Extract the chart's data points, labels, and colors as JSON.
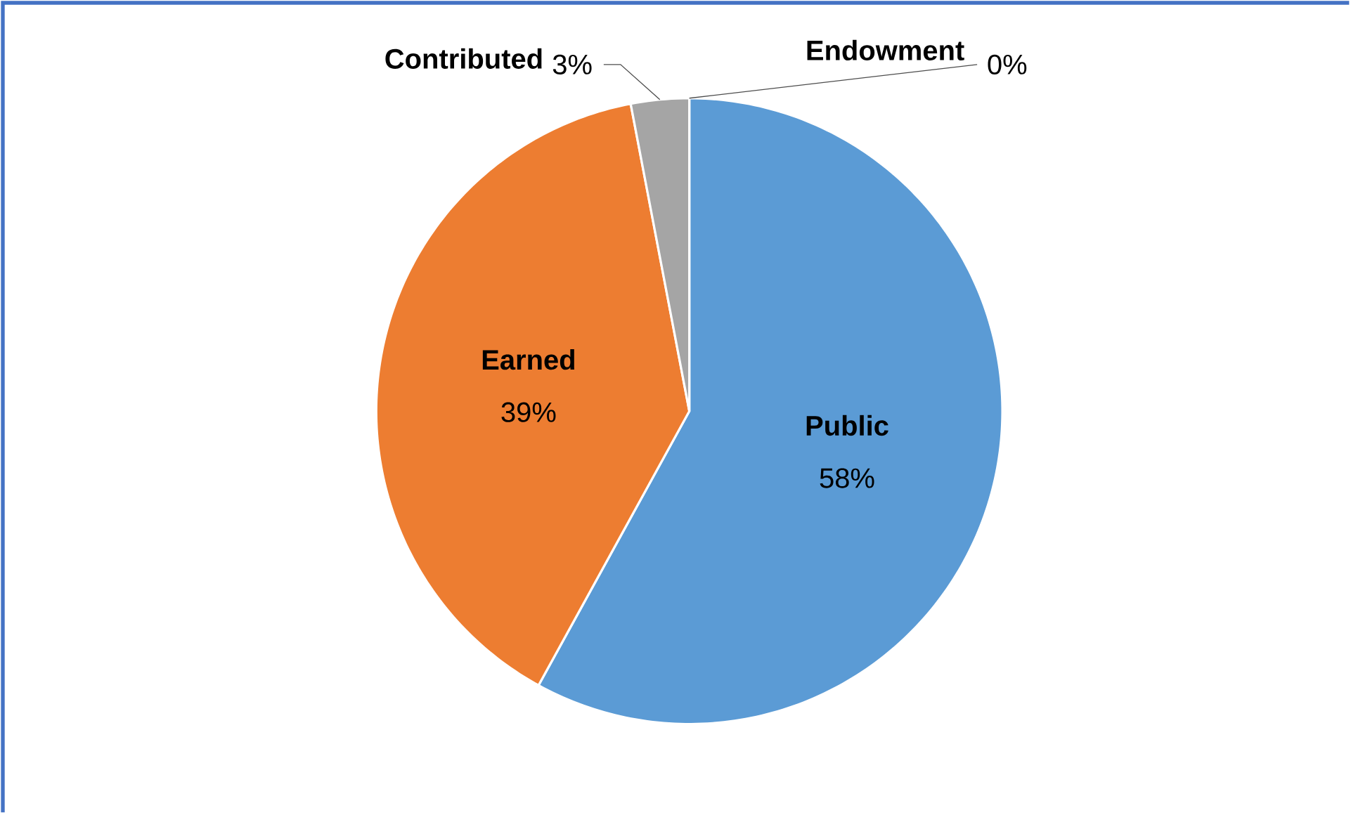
{
  "chart_data": {
    "type": "pie",
    "categories": [
      "Public",
      "Earned",
      "Contributed",
      "Endowment"
    ],
    "values": [
      58,
      39,
      3,
      0
    ],
    "value_labels": [
      "58%",
      "39%",
      "3%",
      "0%"
    ],
    "colors": [
      "#5b9bd5",
      "#ed7d31",
      "#a5a5a5",
      "#ffc000"
    ]
  }
}
